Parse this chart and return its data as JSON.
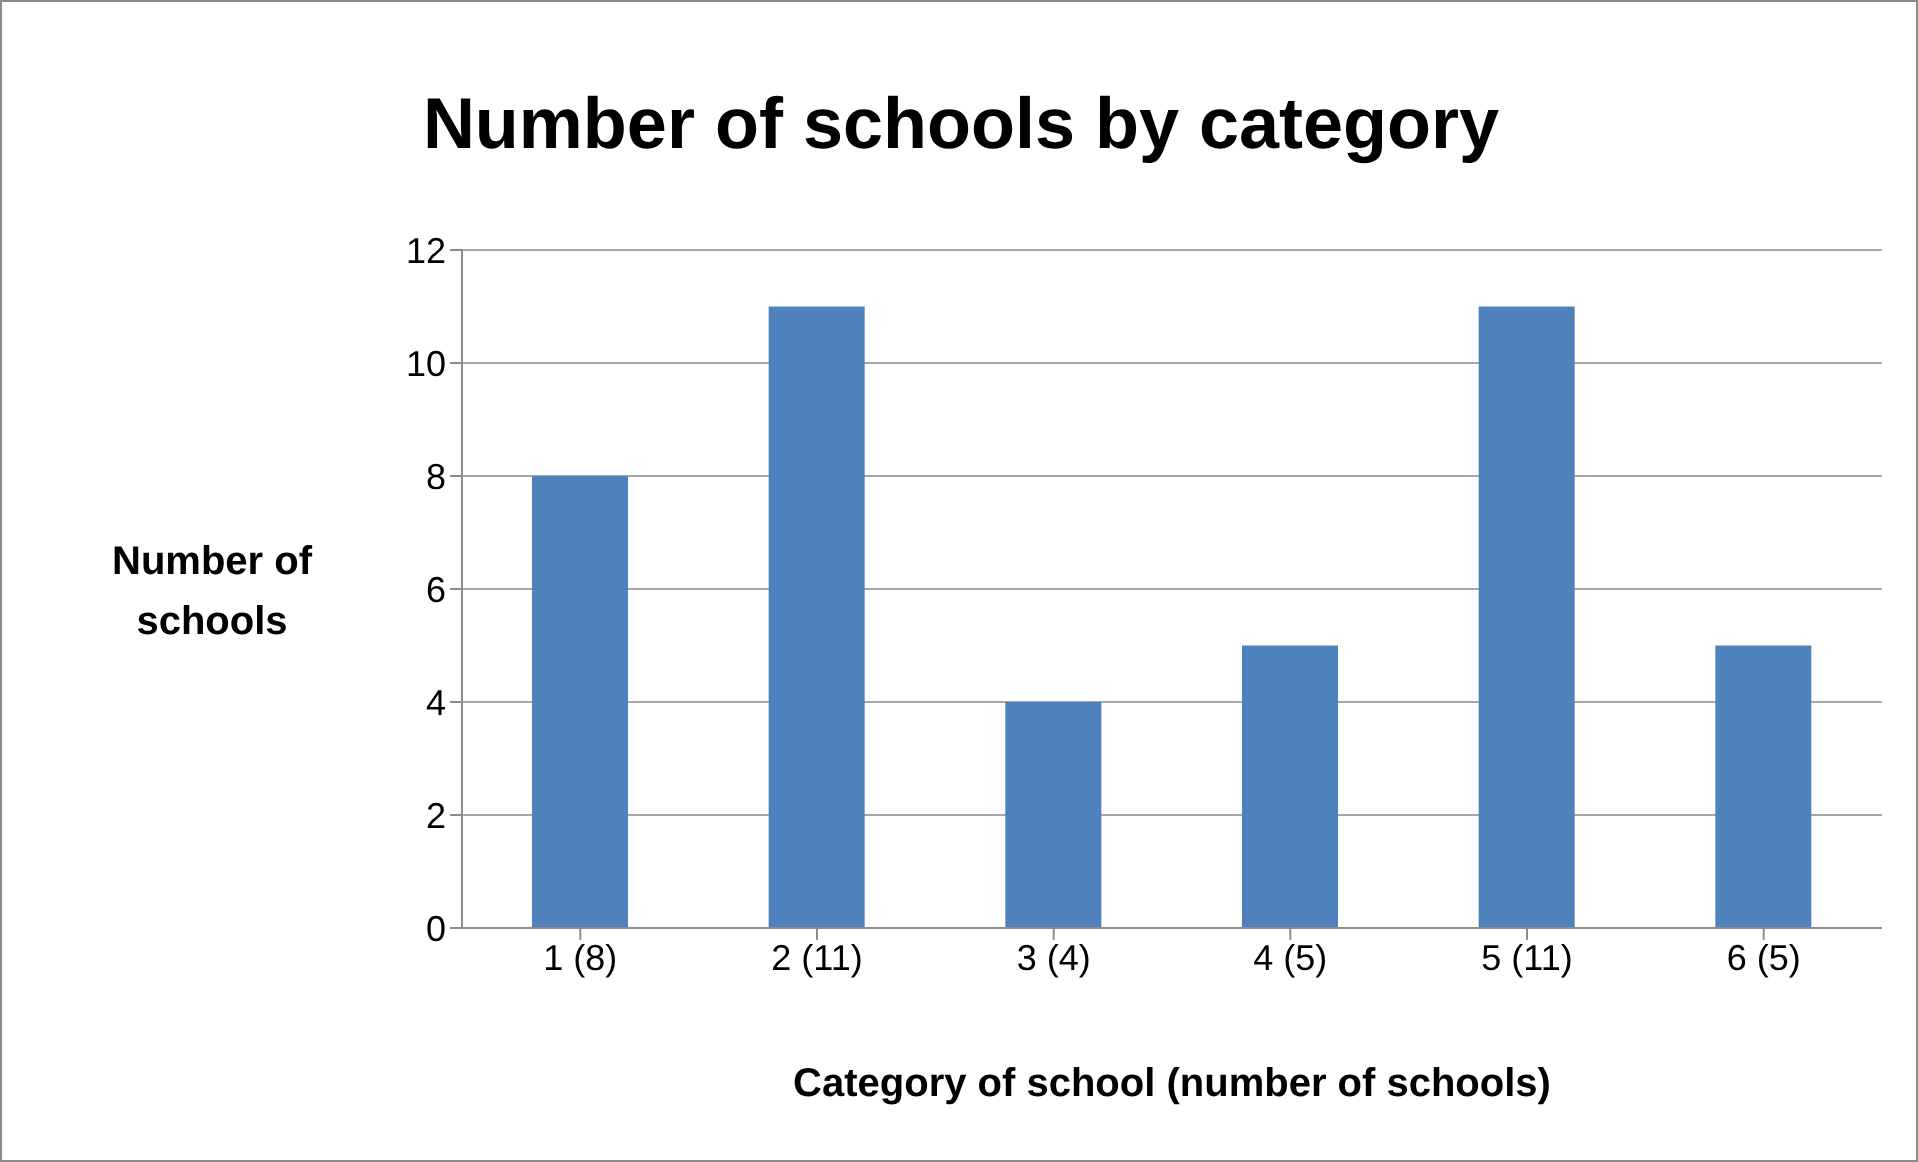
{
  "chart_data": {
    "type": "bar",
    "title": "Number of schools by category",
    "xlabel": "Category of school (number of schools)",
    "ylabel": "Number of schools",
    "categories": [
      "1 (8)",
      "2 (11)",
      "3 (4)",
      "4 (5)",
      "5 (11)",
      "6 (5)"
    ],
    "values": [
      8,
      11,
      4,
      5,
      11,
      5
    ],
    "color": "#4f81bd",
    "ylim": [
      0,
      12
    ],
    "yticks": [
      0,
      2,
      4,
      6,
      8,
      10,
      12
    ],
    "grid": "y",
    "legend": false
  }
}
